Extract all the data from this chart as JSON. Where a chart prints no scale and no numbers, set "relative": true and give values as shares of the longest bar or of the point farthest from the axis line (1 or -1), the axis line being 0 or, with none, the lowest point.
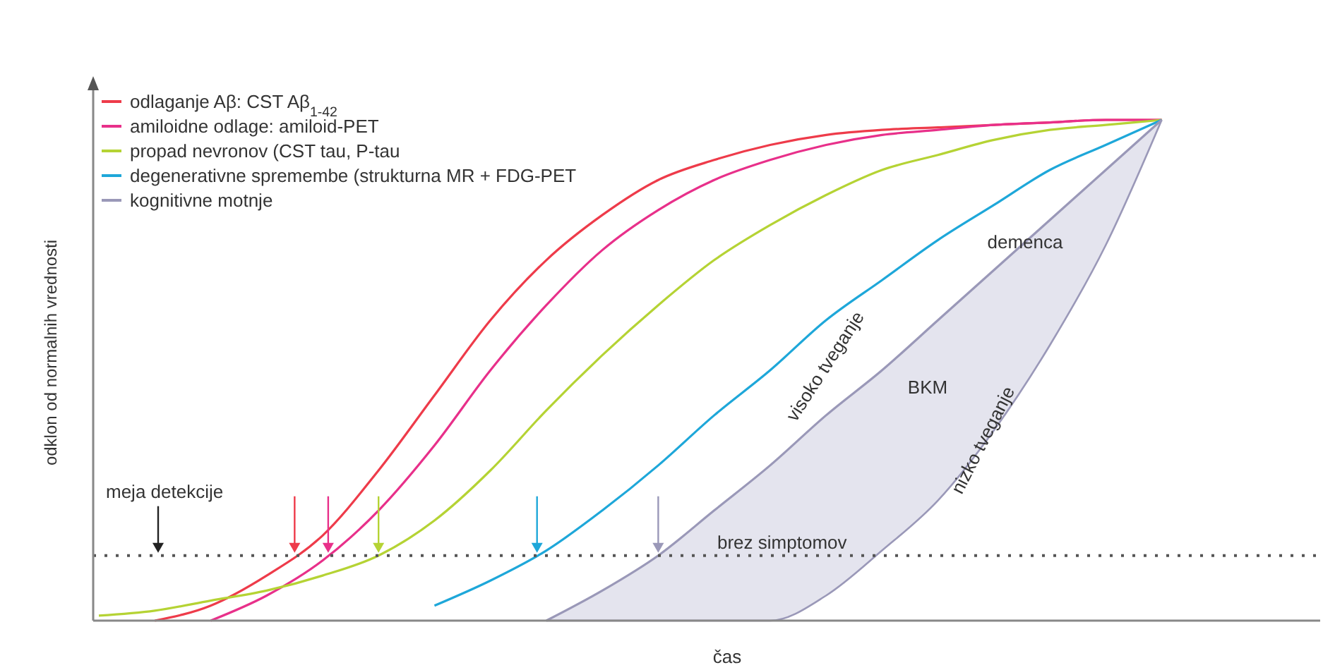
{
  "chart_data": {
    "type": "line",
    "relative": true,
    "xlabel": "čas",
    "ylabel": "odklon od normalnih vrednosti",
    "categories": [
      null,
      null,
      null,
      null,
      null,
      null,
      null,
      null,
      null,
      null,
      null,
      null,
      null,
      null,
      null,
      null,
      null,
      null,
      null,
      null,
      null,
      null
    ],
    "series": [
      {
        "name": "odlaganje Aβ: CST Aβ$_{1-42}$",
        "color": "#ee3b4a",
        "values": [
          null,
          0,
          0.03,
          0.09,
          0.17,
          0.3,
          0.45,
          0.6,
          0.72,
          0.81,
          0.88,
          0.92,
          0.95,
          0.97,
          0.98,
          0.985,
          0.99,
          0.995,
          1,
          1,
          null,
          null
        ]
      },
      {
        "name": "amiloidne odlage: amiloid-PET",
        "color": "#e8308a",
        "values": [
          null,
          null,
          0,
          0.05,
          0.12,
          0.22,
          0.35,
          0.5,
          0.63,
          0.74,
          0.82,
          0.88,
          0.92,
          0.95,
          0.97,
          0.98,
          0.99,
          0.995,
          1,
          1,
          null,
          null
        ]
      },
      {
        "name": "propad nevronov (CST tau, P-tau",
        "color": "#b5d334",
        "values": [
          0.01,
          0.02,
          0.04,
          0.06,
          0.09,
          0.13,
          0.2,
          0.3,
          0.42,
          0.53,
          0.63,
          0.72,
          0.79,
          0.85,
          0.9,
          0.93,
          0.96,
          0.98,
          0.99,
          1,
          null,
          null
        ]
      },
      {
        "name": "degenerativne spremembe (strukturna MR + FDG-PET",
        "color": "#1ea7d9",
        "values": [
          null,
          null,
          null,
          null,
          null,
          null,
          0.03,
          0.08,
          0.14,
          0.22,
          0.31,
          0.41,
          0.5,
          0.6,
          0.68,
          0.76,
          0.83,
          0.9,
          0.95,
          1,
          null,
          null
        ]
      },
      {
        "name": "kognitivne motnje",
        "color": "#9a98b8",
        "values": [
          null,
          null,
          null,
          null,
          null,
          null,
          null,
          null,
          0,
          0.06,
          0.13,
          0.22,
          0.31,
          0.41,
          0.5,
          0.6,
          0.7,
          0.8,
          0.9,
          1,
          null,
          null
        ],
        "lower": [
          null,
          null,
          null,
          null,
          null,
          null,
          null,
          null,
          0,
          0,
          0,
          0,
          0,
          0.05,
          0.14,
          0.24,
          0.38,
          0.55,
          0.75,
          1,
          null,
          null
        ],
        "upper": [
          null,
          null,
          null,
          null,
          null,
          null,
          null,
          null,
          0,
          0.06,
          0.13,
          0.22,
          0.31,
          0.41,
          0.5,
          0.6,
          0.7,
          0.8,
          0.9,
          1,
          null,
          null
        ]
      }
    ],
    "ref_lines": [
      {
        "axis": "y",
        "value": 0.13,
        "label": "meja detekcije",
        "line_style": "dotted",
        "color": "#555555"
      }
    ],
    "annotations": [
      "brez simptomov",
      "visoko tveganje",
      "nizko tveganje",
      "BKM",
      "demenca"
    ],
    "legend": "top left",
    "marker": "none",
    "line_style": "solid"
  }
}
